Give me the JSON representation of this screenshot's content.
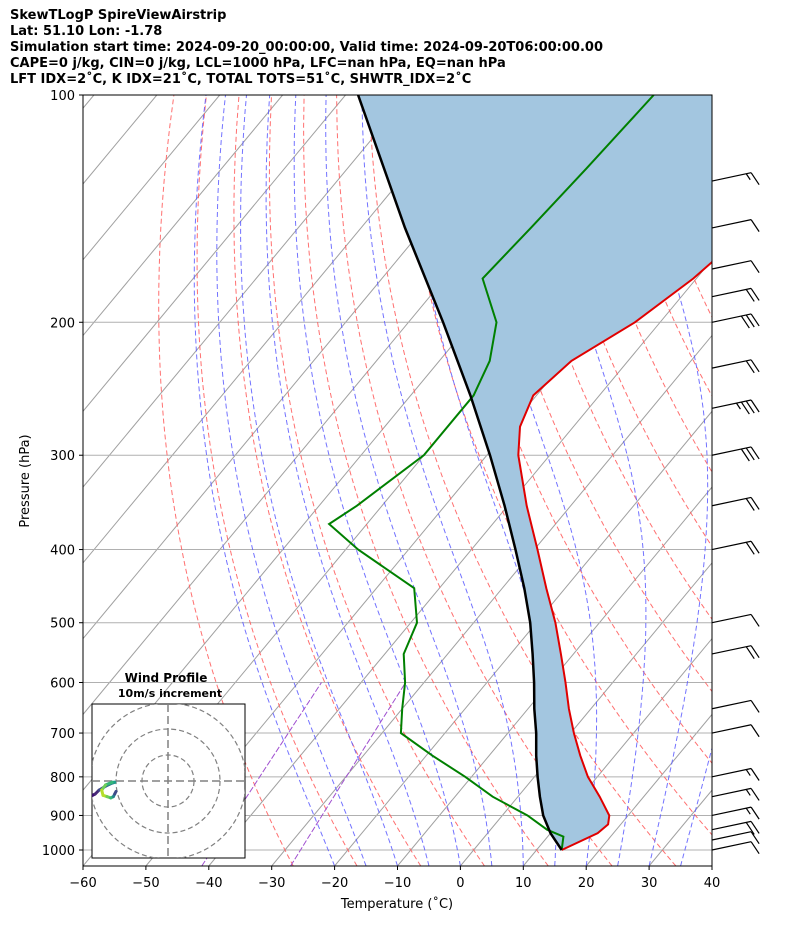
{
  "header": {
    "line1": "SkewTLogP SpireViewAirstrip",
    "line2": "Lat: 51.10   Lon: -1.78",
    "line3": "Simulation start time: 2024-09-20_00:00:00, Valid time: 2024-09-20T06:00:00.00",
    "line4": "CAPE=0 j/kg, CIN=0 j/kg, LCL=1000 hPa, LFC=nan hPa, EQ=nan hPa",
    "line5": "LFT IDX=2˚C, K IDX=21˚C, TOTAL TOTS=51˚C, SHWTR_IDX=2˚C"
  },
  "chart_data": {
    "type": "line",
    "subtype": "skew-t log-p",
    "xlabel": "Temperature (˚C)",
    "ylabel": "Pressure (hPa)",
    "xlim": [
      -60,
      40
    ],
    "ylim": [
      1050,
      100
    ],
    "y_scale": "log",
    "x_ticks": [
      "−60",
      "−50",
      "−40",
      "−30",
      "−20",
      "−10",
      "0",
      "10",
      "20",
      "30",
      "40"
    ],
    "y_ticks": [
      "100",
      "200",
      "300",
      "400",
      "500",
      "600",
      "700",
      "800",
      "900",
      "1000"
    ],
    "grid": true,
    "colors": {
      "temperature": "#e00000",
      "dewpoint": "#008000",
      "parcel": "#000000",
      "shade": "#a3c6e0",
      "isotherm": "#a0a0a0",
      "dry_adiabat": "#ff6060",
      "moist_adiabat": "#5a5aff",
      "mixing_ratio": "#a050d0"
    },
    "series": [
      {
        "name": "temperature",
        "p": [
          1000,
          950,
          925,
          900,
          850,
          800,
          750,
          700,
          650,
          600,
          550,
          500,
          450,
          400,
          350,
          300,
          275,
          250,
          225,
          200,
          175,
          150,
          125,
          110,
          100
        ],
        "t": [
          14.0,
          17.5,
          18.0,
          17.0,
          13.0,
          8.5,
          4.5,
          0.5,
          -3.5,
          -7.5,
          -12.0,
          -17.0,
          -23.0,
          -29.5,
          -37.0,
          -45.0,
          -48.5,
          -50.5,
          -49.0,
          -44.0,
          -40.5,
          -38.0,
          -36.5,
          -35.5,
          -35.5
        ]
      },
      {
        "name": "dewpoint",
        "p": [
          1000,
          960,
          940,
          900,
          850,
          800,
          750,
          700,
          650,
          600,
          550,
          500,
          450,
          400,
          370,
          350,
          300,
          250,
          225,
          200,
          175,
          150,
          125,
          100
        ],
        "t": [
          14.0,
          12.5,
          9.0,
          4.0,
          -4.0,
          -11.0,
          -19.0,
          -27.0,
          -30.0,
          -33.0,
          -37.0,
          -39.0,
          -44.0,
          -58.0,
          -66.0,
          -64.0,
          -60.0,
          -60.0,
          -62.0,
          -66.0,
          -74.0,
          -73.0,
          -72.0,
          -71.0
        ]
      },
      {
        "name": "parcel",
        "p": [
          1000,
          950,
          900,
          850,
          800,
          750,
          700,
          650,
          600,
          550,
          500,
          450,
          400,
          350,
          300,
          250,
          200,
          150,
          100
        ],
        "t": [
          14.0,
          10.0,
          6.5,
          3.5,
          0.5,
          -2.5,
          -5.5,
          -9.0,
          -12.5,
          -16.5,
          -21.0,
          -26.5,
          -33.0,
          -40.5,
          -49.5,
          -60.5,
          -74.5,
          -93.0,
          -118.0
        ]
      }
    ],
    "wind_barbs": [
      {
        "p": 130,
        "symbol": "1 full + 1 half"
      },
      {
        "p": 150,
        "symbol": "1 full"
      },
      {
        "p": 170,
        "symbol": "1 full"
      },
      {
        "p": 185,
        "symbol": "2 full"
      },
      {
        "p": 200,
        "symbol": "3 full"
      },
      {
        "p": 230,
        "symbol": "2 full"
      },
      {
        "p": 260,
        "symbol": "3 full + 1 half"
      },
      {
        "p": 300,
        "symbol": "3 full"
      },
      {
        "p": 350,
        "symbol": "2 full"
      },
      {
        "p": 400,
        "symbol": "2 full"
      },
      {
        "p": 500,
        "symbol": "1 full"
      },
      {
        "p": 550,
        "symbol": "2 full"
      },
      {
        "p": 650,
        "symbol": "1 full"
      },
      {
        "p": 700,
        "symbol": "1 full"
      },
      {
        "p": 800,
        "symbol": "1 full + 1 half"
      },
      {
        "p": 850,
        "symbol": "1 full + 1 half"
      },
      {
        "p": 900,
        "symbol": "1 full + 1 half"
      },
      {
        "p": 940,
        "symbol": "2 full"
      },
      {
        "p": 970,
        "symbol": "1 full"
      },
      {
        "p": 1000,
        "symbol": "1 full"
      }
    ],
    "inset": {
      "title": "Wind Profile",
      "subtitle": "10m/s increment",
      "hodograph_u": [
        -30.0,
        -29.0,
        -28.0,
        -26.5,
        -24.0,
        -22.0,
        -20.5,
        -21.5,
        -24.0,
        -25.5,
        -25.0,
        -23.5,
        -22.0,
        -21.0,
        -20.5,
        -20.0
      ],
      "hodograph_v": [
        -6.0,
        -5.5,
        -5.0,
        -3.5,
        -2.0,
        -1.0,
        -0.5,
        -0.5,
        -1.5,
        -3.5,
        -5.5,
        -6.0,
        -6.5,
        -6.0,
        -5.0,
        -4.0
      ]
    }
  }
}
